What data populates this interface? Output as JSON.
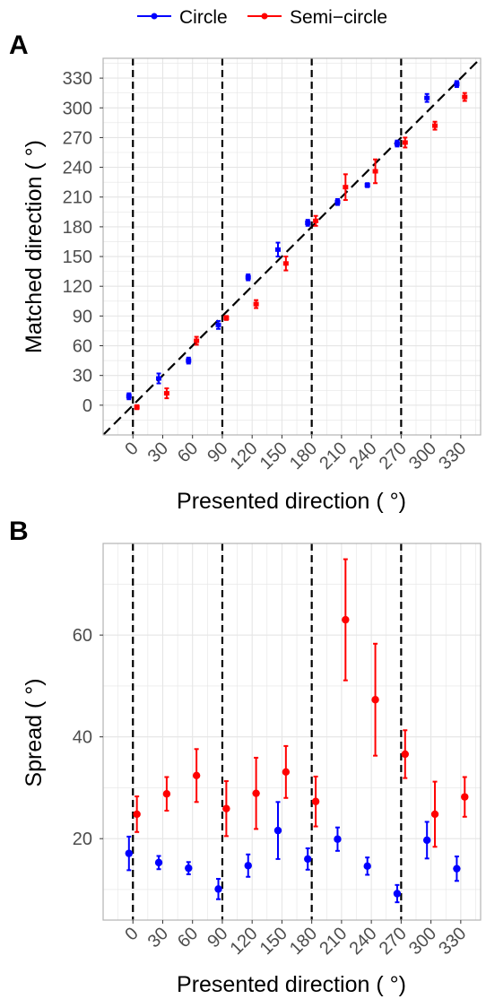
{
  "legend": {
    "items": [
      {
        "label": "Circle",
        "color": "#0000ff"
      },
      {
        "label": "Semi−circle",
        "color": "#ff0000"
      }
    ]
  },
  "chart_data": [
    {
      "panel_label": "A",
      "type": "scatter",
      "xlabel": "Presented direction ( °)",
      "ylabel": "Matched direction ( °)",
      "xlim": [
        -30,
        350
      ],
      "ylim": [
        -30,
        350
      ],
      "x_ticks": [
        0,
        30,
        60,
        90,
        120,
        150,
        180,
        210,
        240,
        270,
        300,
        330
      ],
      "y_ticks": [
        0,
        30,
        60,
        90,
        120,
        150,
        180,
        210,
        240,
        270,
        300,
        330
      ],
      "vlines": [
        0,
        90,
        180,
        270
      ],
      "diagonal": true,
      "grid": true,
      "series": [
        {
          "name": "Circle",
          "color": "#0000ff",
          "points": [
            {
              "x": -4,
              "y": 9,
              "err": 3
            },
            {
              "x": 26,
              "y": 27,
              "err": 5
            },
            {
              "x": 56,
              "y": 45,
              "err": 3
            },
            {
              "x": 86,
              "y": 81,
              "err": 4
            },
            {
              "x": 116,
              "y": 129,
              "err": 3
            },
            {
              "x": 146,
              "y": 157,
              "err": 7
            },
            {
              "x": 176,
              "y": 184,
              "err": 3
            },
            {
              "x": 206,
              "y": 205,
              "err": 3
            },
            {
              "x": 236,
              "y": 222,
              "err": 2
            },
            {
              "x": 266,
              "y": 264,
              "err": 3
            },
            {
              "x": 296,
              "y": 310,
              "err": 4
            },
            {
              "x": 326,
              "y": 324,
              "err": 3
            }
          ]
        },
        {
          "name": "Semi−circle",
          "color": "#ff0000",
          "points": [
            {
              "x": 4,
              "y": -2,
              "err": 2
            },
            {
              "x": 34,
              "y": 12,
              "err": 5
            },
            {
              "x": 64,
              "y": 65,
              "err": 4
            },
            {
              "x": 94,
              "y": 88,
              "err": 2
            },
            {
              "x": 124,
              "y": 102,
              "err": 4
            },
            {
              "x": 154,
              "y": 143,
              "err": 7
            },
            {
              "x": 184,
              "y": 186,
              "err": 5
            },
            {
              "x": 214,
              "y": 220,
              "err": 13
            },
            {
              "x": 244,
              "y": 236,
              "err": 12
            },
            {
              "x": 274,
              "y": 265,
              "err": 5
            },
            {
              "x": 304,
              "y": 282,
              "err": 4
            },
            {
              "x": 334,
              "y": 311,
              "err": 4
            }
          ]
        }
      ]
    },
    {
      "panel_label": "B",
      "type": "scatter",
      "xlabel": "Presented direction ( °)",
      "ylabel": "Spread ( °)",
      "xlim": [
        -30,
        350
      ],
      "ylim": [
        4,
        78
      ],
      "x_ticks": [
        0,
        30,
        60,
        90,
        120,
        150,
        180,
        210,
        240,
        270,
        300,
        330
      ],
      "y_ticks": [
        20,
        40,
        60
      ],
      "vlines": [
        0,
        90,
        180,
        270
      ],
      "grid": true,
      "series": [
        {
          "name": "Circle",
          "color": "#0000ff",
          "points": [
            {
              "x": -4,
              "y": 17.1,
              "err": 3.3
            },
            {
              "x": 26,
              "y": 15.3,
              "err": 1.3
            },
            {
              "x": 56,
              "y": 14.2,
              "err": 1.2
            },
            {
              "x": 86,
              "y": 10.1,
              "err": 2.0
            },
            {
              "x": 116,
              "y": 14.7,
              "err": 2.2
            },
            {
              "x": 146,
              "y": 21.6,
              "err": 5.6
            },
            {
              "x": 176,
              "y": 16.0,
              "err": 2.1
            },
            {
              "x": 206,
              "y": 19.9,
              "err": 2.3
            },
            {
              "x": 236,
              "y": 14.6,
              "err": 1.7
            },
            {
              "x": 266,
              "y": 9.2,
              "err": 1.7
            },
            {
              "x": 296,
              "y": 19.7,
              "err": 3.6
            },
            {
              "x": 326,
              "y": 14.1,
              "err": 2.4
            }
          ]
        },
        {
          "name": "Semi−circle",
          "color": "#ff0000",
          "points": [
            {
              "x": 4,
              "y": 24.8,
              "err": 3.5
            },
            {
              "x": 34,
              "y": 28.8,
              "err": 3.3
            },
            {
              "x": 64,
              "y": 32.4,
              "err": 5.2
            },
            {
              "x": 94,
              "y": 25.9,
              "err": 5.4
            },
            {
              "x": 124,
              "y": 28.9,
              "err": 7.0
            },
            {
              "x": 154,
              "y": 33.1,
              "err": 5.1
            },
            {
              "x": 184,
              "y": 27.3,
              "err": 4.9
            },
            {
              "x": 214,
              "y": 63.0,
              "err": 11.9
            },
            {
              "x": 244,
              "y": 47.3,
              "err": 11.0
            },
            {
              "x": 274,
              "y": 36.6,
              "err": 4.7
            },
            {
              "x": 304,
              "y": 24.8,
              "err": 6.4
            },
            {
              "x": 334,
              "y": 28.2,
              "err": 3.9
            }
          ]
        }
      ]
    }
  ]
}
